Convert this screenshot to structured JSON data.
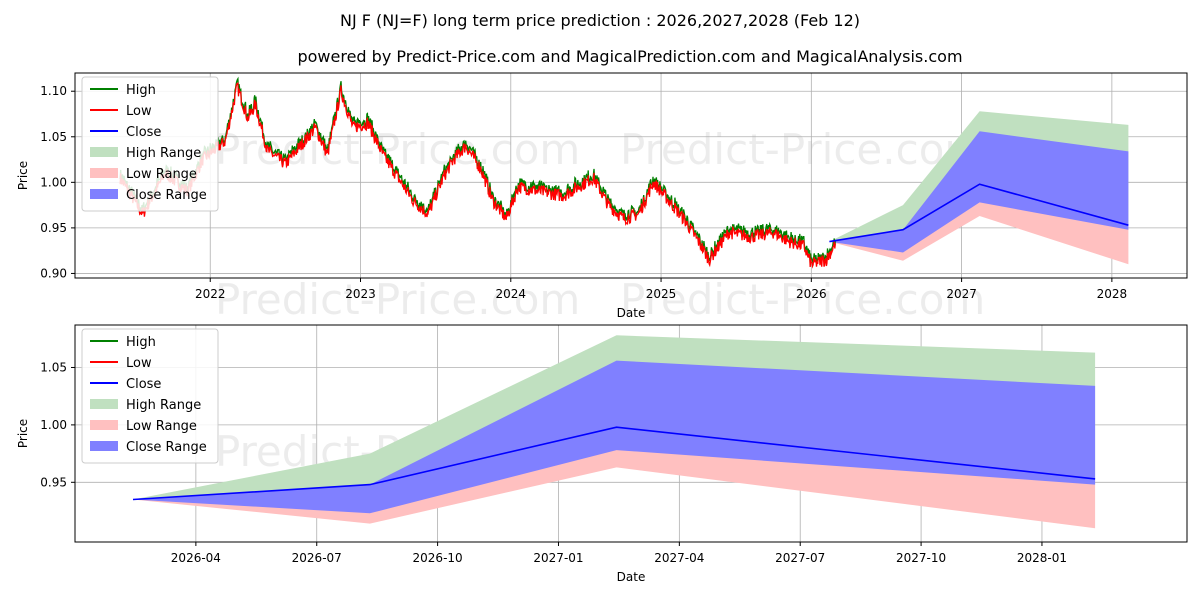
{
  "title": "NJ F (NJ=F) long term price prediction : 2026,2027,2028 (Feb 12)",
  "subtitle": "powered by Predict-Price.com and MagicalPrediction.com and MagicalAnalysis.com",
  "watermark": "Predict-Price.com",
  "colors": {
    "high": "#008000",
    "low": "#ff0000",
    "close": "#0000ff",
    "high_range": "#c0e0c0",
    "low_range": "#ffc0c0",
    "close_range": "#8080ff",
    "grid": "#b0b0b0"
  },
  "chart_data": [
    {
      "type": "line",
      "name": "long-term",
      "xlabel": "Date",
      "ylabel": "Price",
      "xlim": [
        2021.1,
        2028.5
      ],
      "ylim": [
        0.895,
        1.12
      ],
      "xticks": [
        2022,
        2023,
        2024,
        2025,
        2026,
        2027,
        2028
      ],
      "xtick_labels": [
        "2022",
        "2023",
        "2024",
        "2025",
        "2026",
        "2027",
        "2028"
      ],
      "yticks": [
        0.9,
        0.95,
        1.0,
        1.05,
        1.1
      ],
      "ytick_labels": [
        "0.90",
        "0.95",
        "1.00",
        "1.05",
        "1.10"
      ],
      "legend": [
        "High",
        "Low",
        "Close",
        "High Range",
        "Low Range",
        "Close Range"
      ],
      "legend_loc": "upper-left",
      "history_anchors": [
        [
          2021.4,
          1.005
        ],
        [
          2021.55,
          0.965
        ],
        [
          2021.7,
          1.01
        ],
        [
          2021.85,
          0.99
        ],
        [
          2021.95,
          1.025
        ],
        [
          2022.1,
          1.045
        ],
        [
          2022.18,
          1.105
        ],
        [
          2022.25,
          1.07
        ],
        [
          2022.3,
          1.085
        ],
        [
          2022.38,
          1.035
        ],
        [
          2022.5,
          1.02
        ],
        [
          2022.6,
          1.04
        ],
        [
          2022.7,
          1.06
        ],
        [
          2022.78,
          1.03
        ],
        [
          2022.87,
          1.1
        ],
        [
          2022.95,
          1.06
        ],
        [
          2023.05,
          1.065
        ],
        [
          2023.15,
          1.03
        ],
        [
          2023.25,
          1.005
        ],
        [
          2023.35,
          0.98
        ],
        [
          2023.45,
          0.965
        ],
        [
          2023.55,
          1.005
        ],
        [
          2023.62,
          1.025
        ],
        [
          2023.7,
          1.04
        ],
        [
          2023.8,
          1.015
        ],
        [
          2023.88,
          0.98
        ],
        [
          2023.97,
          0.96
        ],
        [
          2024.05,
          0.995
        ],
        [
          2024.2,
          0.99
        ],
        [
          2024.35,
          0.985
        ],
        [
          2024.45,
          0.995
        ],
        [
          2024.55,
          1.005
        ],
        [
          2024.65,
          0.975
        ],
        [
          2024.75,
          0.96
        ],
        [
          2024.85,
          0.965
        ],
        [
          2024.95,
          1.0
        ],
        [
          2025.05,
          0.98
        ],
        [
          2025.15,
          0.96
        ],
        [
          2025.25,
          0.935
        ],
        [
          2025.32,
          0.915
        ],
        [
          2025.45,
          0.945
        ],
        [
          2025.6,
          0.94
        ],
        [
          2025.75,
          0.945
        ],
        [
          2025.85,
          0.935
        ],
        [
          2025.95,
          0.93
        ],
        [
          2026.0,
          0.91
        ],
        [
          2026.1,
          0.915
        ],
        [
          2026.16,
          0.933
        ]
      ],
      "forecast": {
        "x": [
          2026.12,
          2026.61,
          2027.12,
          2028.11
        ],
        "high": [
          0.935,
          0.975,
          1.078,
          1.063
        ],
        "close_upper": [
          0.935,
          0.948,
          1.056,
          1.034
        ],
        "close": [
          0.935,
          0.948,
          0.998,
          0.953
        ],
        "close_lower": [
          0.935,
          0.923,
          0.978,
          0.948
        ],
        "low": [
          0.935,
          0.914,
          0.963,
          0.91
        ]
      }
    },
    {
      "type": "line",
      "name": "forecast-zoom",
      "xlabel": "Date",
      "ylabel": "Price",
      "xlim": [
        2026.0,
        2028.3
      ],
      "ylim": [
        0.898,
        1.087
      ],
      "xticks": [
        2026.25,
        2026.5,
        2026.75,
        2027.0,
        2027.25,
        2027.5,
        2027.75,
        2028.0
      ],
      "xtick_labels": [
        "2026-04",
        "2026-07",
        "2026-10",
        "2027-01",
        "2027-04",
        "2027-07",
        "2027-10",
        "2028-01"
      ],
      "yticks": [
        0.95,
        1.0,
        1.05
      ],
      "ytick_labels": [
        "0.95",
        "1.00",
        "1.05"
      ],
      "legend": [
        "High",
        "Low",
        "Close",
        "High Range",
        "Low Range",
        "Close Range"
      ],
      "legend_loc": "upper-left",
      "forecast": {
        "x": [
          2026.12,
          2026.61,
          2027.12,
          2028.11
        ],
        "high": [
          0.935,
          0.975,
          1.078,
          1.063
        ],
        "close_upper": [
          0.935,
          0.948,
          1.056,
          1.034
        ],
        "close": [
          0.935,
          0.948,
          0.998,
          0.953
        ],
        "close_lower": [
          0.935,
          0.923,
          0.978,
          0.948
        ],
        "low": [
          0.935,
          0.914,
          0.963,
          0.91
        ]
      }
    }
  ]
}
